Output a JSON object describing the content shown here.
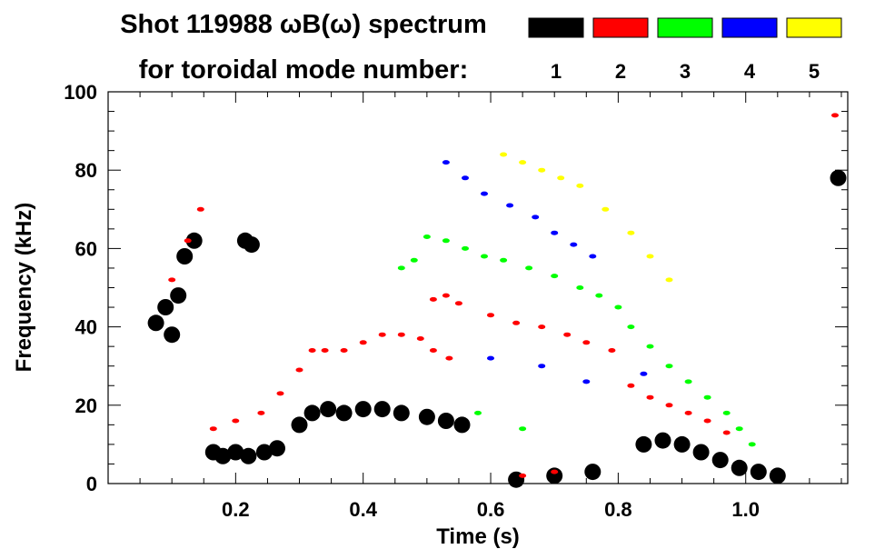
{
  "chart_data": {
    "type": "heatmap",
    "title_line1": "Shot 119988 ωB(ω) spectrum",
    "title_line2": "for toroidal mode number:",
    "xlabel": "Time (s)",
    "ylabel": "Frequency (kHz)",
    "xlim": [
      0.0,
      1.16
    ],
    "ylim": [
      0,
      100
    ],
    "x_ticks": [
      0.2,
      0.4,
      0.6,
      0.8,
      1.0
    ],
    "x_tick_labels": [
      "0.2",
      "0.4",
      "0.6",
      "0.8",
      "1.0"
    ],
    "y_ticks": [
      0,
      20,
      40,
      60,
      80,
      100
    ],
    "y_tick_labels": [
      "0",
      "20",
      "40",
      "60",
      "80",
      "100"
    ],
    "grid": false,
    "legend": {
      "placement": "top-right",
      "entries": [
        {
          "label": "1",
          "color": "#000000"
        },
        {
          "label": "2",
          "color": "#ff0000"
        },
        {
          "label": "3",
          "color": "#00ff00"
        },
        {
          "label": "4",
          "color": "#0000ff"
        },
        {
          "label": "5",
          "color": "#ffff00"
        }
      ]
    },
    "series": [
      {
        "mode": "1",
        "color": "#000000",
        "points": [
          [
            0.075,
            41
          ],
          [
            0.09,
            45
          ],
          [
            0.1,
            38
          ],
          [
            0.11,
            48
          ],
          [
            0.12,
            58
          ],
          [
            0.135,
            62
          ],
          [
            0.165,
            8
          ],
          [
            0.18,
            7
          ],
          [
            0.2,
            8
          ],
          [
            0.22,
            7
          ],
          [
            0.245,
            8
          ],
          [
            0.265,
            9
          ],
          [
            0.215,
            62
          ],
          [
            0.225,
            61
          ],
          [
            0.3,
            15
          ],
          [
            0.32,
            18
          ],
          [
            0.345,
            19
          ],
          [
            0.37,
            18
          ],
          [
            0.4,
            19
          ],
          [
            0.43,
            19
          ],
          [
            0.46,
            18
          ],
          [
            0.5,
            17
          ],
          [
            0.53,
            16
          ],
          [
            0.555,
            15
          ],
          [
            0.64,
            1
          ],
          [
            0.7,
            2
          ],
          [
            0.76,
            3
          ],
          [
            0.84,
            10
          ],
          [
            0.87,
            11
          ],
          [
            0.9,
            10
          ],
          [
            0.93,
            8
          ],
          [
            0.96,
            6
          ],
          [
            0.99,
            4
          ],
          [
            1.02,
            3
          ],
          [
            1.05,
            2
          ],
          [
            1.145,
            78
          ]
        ]
      },
      {
        "mode": "2",
        "color": "#ff0000",
        "points": [
          [
            0.1,
            52
          ],
          [
            0.125,
            62
          ],
          [
            0.145,
            70
          ],
          [
            0.165,
            14
          ],
          [
            0.2,
            16
          ],
          [
            0.24,
            18
          ],
          [
            0.27,
            23
          ],
          [
            0.3,
            29
          ],
          [
            0.32,
            34
          ],
          [
            0.34,
            34
          ],
          [
            0.37,
            34
          ],
          [
            0.4,
            36
          ],
          [
            0.43,
            38
          ],
          [
            0.46,
            38
          ],
          [
            0.49,
            37
          ],
          [
            0.51,
            34
          ],
          [
            0.535,
            32
          ],
          [
            0.51,
            47
          ],
          [
            0.53,
            48
          ],
          [
            0.55,
            46
          ],
          [
            0.6,
            43
          ],
          [
            0.64,
            41
          ],
          [
            0.68,
            40
          ],
          [
            0.72,
            38
          ],
          [
            0.75,
            36
          ],
          [
            0.79,
            34
          ],
          [
            0.82,
            25
          ],
          [
            0.85,
            22
          ],
          [
            0.88,
            20
          ],
          [
            0.91,
            18
          ],
          [
            0.94,
            16
          ],
          [
            0.97,
            13
          ],
          [
            0.65,
            2
          ],
          [
            0.7,
            3
          ],
          [
            1.14,
            94
          ]
        ]
      },
      {
        "mode": "3",
        "color": "#00ff00",
        "points": [
          [
            0.46,
            55
          ],
          [
            0.48,
            57
          ],
          [
            0.5,
            63
          ],
          [
            0.53,
            62
          ],
          [
            0.56,
            60
          ],
          [
            0.59,
            58
          ],
          [
            0.62,
            57
          ],
          [
            0.66,
            55
          ],
          [
            0.7,
            53
          ],
          [
            0.74,
            50
          ],
          [
            0.77,
            48
          ],
          [
            0.8,
            45
          ],
          [
            0.82,
            40
          ],
          [
            0.85,
            35
          ],
          [
            0.88,
            30
          ],
          [
            0.91,
            26
          ],
          [
            0.94,
            22
          ],
          [
            0.97,
            18
          ],
          [
            0.99,
            14
          ],
          [
            1.01,
            10
          ],
          [
            0.58,
            18
          ],
          [
            0.65,
            14
          ]
        ]
      },
      {
        "mode": "4",
        "color": "#0000ff",
        "points": [
          [
            0.53,
            82
          ],
          [
            0.56,
            78
          ],
          [
            0.59,
            74
          ],
          [
            0.63,
            71
          ],
          [
            0.67,
            68
          ],
          [
            0.7,
            64
          ],
          [
            0.73,
            61
          ],
          [
            0.76,
            58
          ],
          [
            0.6,
            32
          ],
          [
            0.68,
            30
          ],
          [
            0.75,
            26
          ],
          [
            0.84,
            28
          ]
        ]
      },
      {
        "mode": "5",
        "color": "#ffff00",
        "points": [
          [
            0.62,
            84
          ],
          [
            0.65,
            82
          ],
          [
            0.68,
            80
          ],
          [
            0.71,
            78
          ],
          [
            0.74,
            76
          ],
          [
            0.78,
            70
          ],
          [
            0.82,
            64
          ],
          [
            0.85,
            58
          ],
          [
            0.88,
            52
          ]
        ]
      }
    ]
  }
}
